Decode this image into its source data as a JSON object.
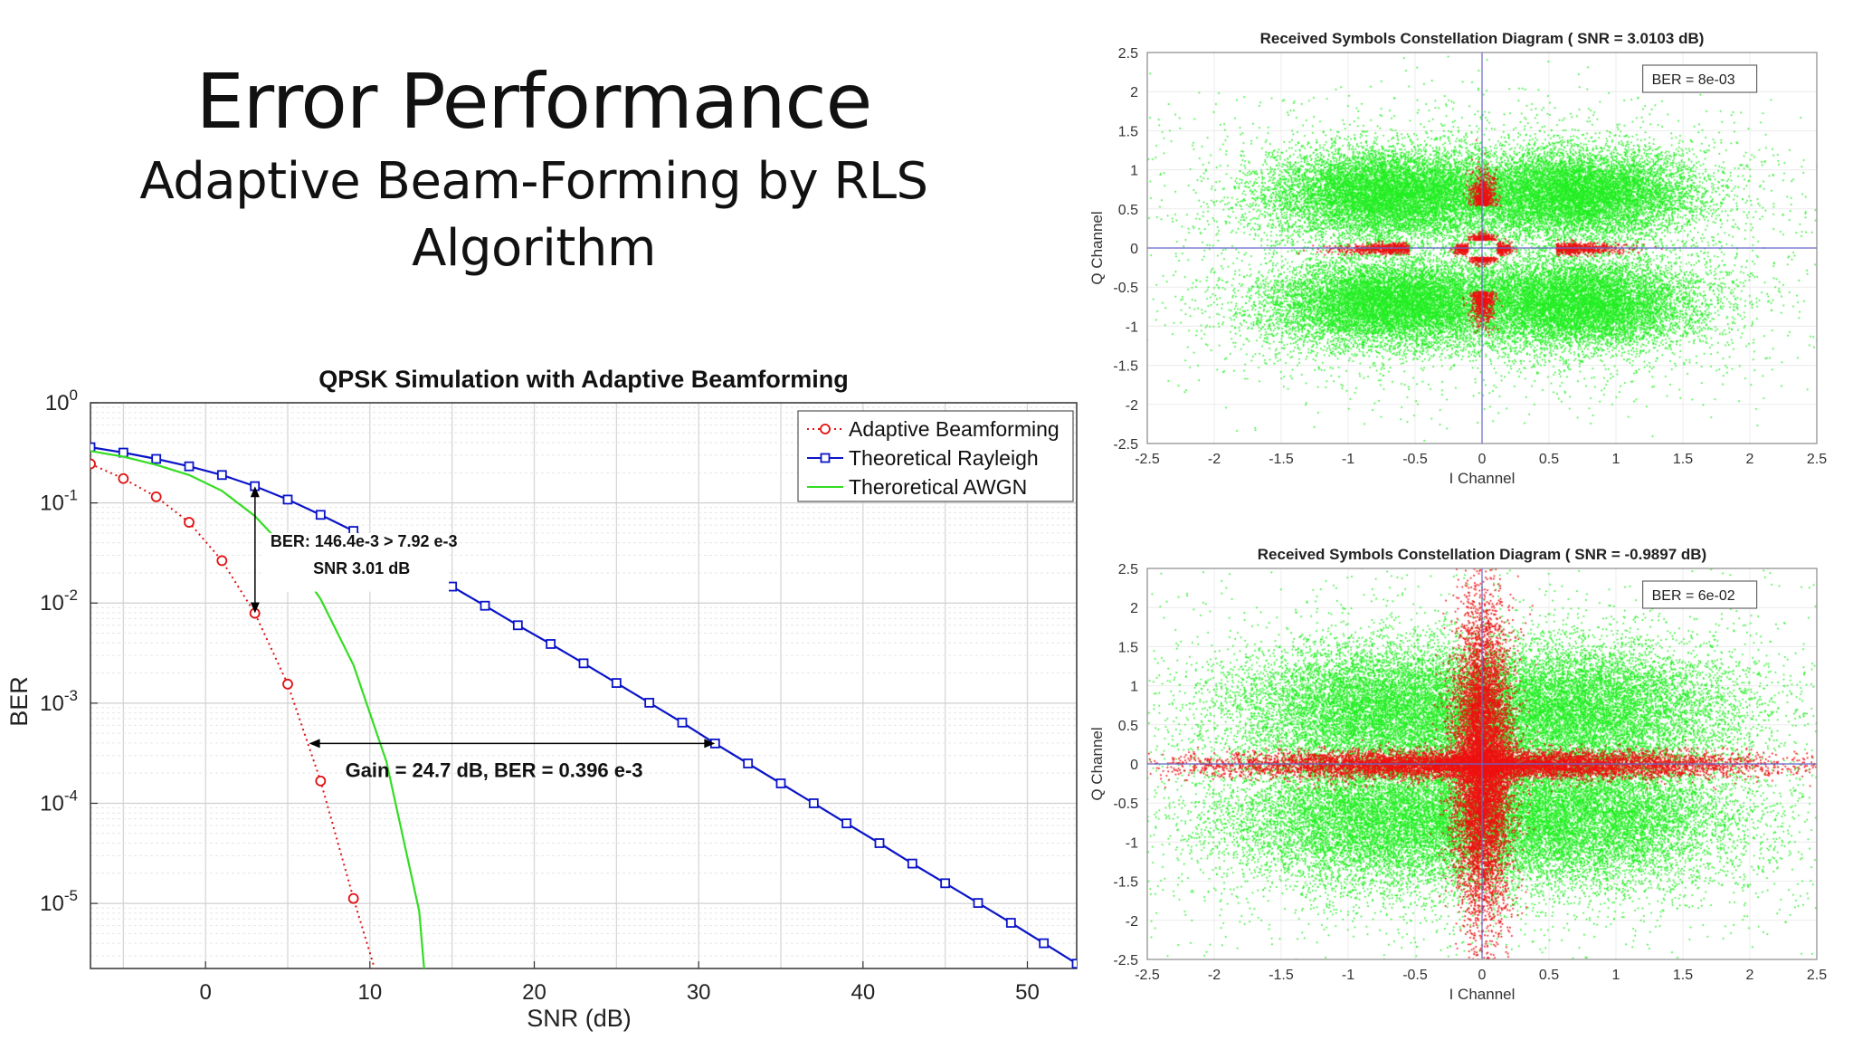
{
  "slide": {
    "title": "Error Performance",
    "subtitle_line1": "Adaptive Beam-Forming by RLS",
    "subtitle_line2": "Algorithm"
  },
  "colors": {
    "adaptive": "#e01010",
    "rayleigh": "#0a14c8",
    "awgn": "#33dd22",
    "grid": "#d7d7d7",
    "constellation_green": "#22ee22",
    "constellation_red": "#ee1111",
    "axis_line": "#6666cc"
  },
  "chart_data": [
    {
      "type": "line",
      "title": "QPSK Simulation with Adaptive Beamforming",
      "xlabel": "SNR (dB)",
      "ylabel": "BER",
      "xlim": [
        -7,
        53
      ],
      "ylim_log10": [
        -5.65,
        0
      ],
      "y_scale": "log",
      "grid": true,
      "legend_position": "top-right",
      "xticks": [
        "0",
        "10",
        "20",
        "30",
        "40",
        "50"
      ],
      "xtick_values": [
        0,
        10,
        20,
        30,
        40,
        50
      ],
      "ytick_exponents": [
        "0",
        "-1",
        "-2",
        "-3",
        "-4",
        "-5"
      ],
      "ytick_base": "10",
      "series": [
        {
          "name": "Adaptive Beamforming",
          "color": "#e01010",
          "marker": "circle",
          "style": "dotted",
          "x": [
            -7,
            -5,
            -3,
            -1,
            1,
            3,
            5,
            7,
            9,
            10.3
          ],
          "y": [
            0.245,
            0.175,
            0.115,
            0.064,
            0.0265,
            0.0079,
            0.00155,
            0.000167,
            1.12e-05,
            2.2e-06
          ],
          "marker_count": 9
        },
        {
          "name": "Theoretical Rayleigh",
          "color": "#0a14c8",
          "marker": "square",
          "style": "solid",
          "x": [
            -7,
            -5,
            -3,
            -1,
            1,
            3,
            5,
            7,
            9,
            11,
            13,
            15,
            17,
            19,
            21,
            23,
            25,
            27,
            29,
            31,
            33,
            35,
            37,
            39,
            41,
            43,
            45,
            47,
            49,
            51,
            53
          ],
          "y": [
            0.36,
            0.318,
            0.275,
            0.232,
            0.19,
            0.147,
            0.108,
            0.076,
            0.0525,
            0.0345,
            0.0225,
            0.0146,
            0.0094,
            0.006,
            0.0039,
            0.0025,
            0.00159,
            0.00101,
            0.00064,
            0.000396,
            0.00025,
            0.000158,
            0.0001,
            6.3e-05,
            4e-05,
            2.5e-05,
            1.59e-05,
            1.01e-05,
            6.4e-06,
            4e-06,
            2.5e-06
          ]
        },
        {
          "name": "Theroretical AWGN",
          "color": "#33dd22",
          "marker": "none",
          "style": "solid",
          "x": [
            -7,
            -5,
            -3,
            -1,
            1,
            3,
            5,
            7,
            9,
            11,
            13,
            13.3
          ],
          "y": [
            0.33,
            0.29,
            0.24,
            0.19,
            0.132,
            0.074,
            0.033,
            0.011,
            0.0024,
            0.000262,
            8.4e-06,
            2.2e-06
          ]
        }
      ],
      "annotations": {
        "ber_line1": "BER: 146.4e-3 > 7.92 e-3",
        "ber_line2": "SNR 3.01 dB",
        "gain": "Gain = 24.7 dB, BER = 0.396 e-3",
        "ber_arrow": {
          "x": 3.01,
          "y_from": 0.1464,
          "y_to": 0.00792
        },
        "gain_arrow": {
          "x_from": 6.3,
          "x_to": 31,
          "y": 0.000396
        }
      }
    },
    {
      "type": "scatter",
      "title": "Received Symbols Constellation Diagram ( SNR = 3.0103 dB)",
      "xlabel": "I Channel",
      "ylabel": "Q Channel",
      "xlim": [
        -2.5,
        2.5
      ],
      "ylim": [
        -2.5,
        2.5
      ],
      "ticks": [
        "-2.5",
        "-2",
        "-1.5",
        "-1",
        "-0.5",
        "0",
        "0.5",
        "1",
        "1.5",
        "2",
        "2.5"
      ],
      "tick_values": [
        -2.5,
        -2,
        -1.5,
        -1,
        -0.5,
        0,
        0.5,
        1,
        1.5,
        2,
        2.5
      ],
      "ber_box": "BER = 8e-03",
      "symbol_clusters": [
        [
          0.7,
          0.7
        ],
        [
          -0.7,
          0.7
        ],
        [
          -0.7,
          -0.7
        ],
        [
          0.7,
          -0.7
        ]
      ],
      "cluster_spread": [
        0.45,
        0.28
      ],
      "error_density": "low"
    },
    {
      "type": "scatter",
      "title": "Received Symbols Constellation Diagram ( SNR = -0.9897 dB)",
      "xlabel": "I Channel",
      "ylabel": "Q Channel",
      "xlim": [
        -2.5,
        2.5
      ],
      "ylim": [
        -2.5,
        2.5
      ],
      "ticks": [
        "-2.5",
        "-2",
        "-1.5",
        "-1",
        "-0.5",
        "0",
        "0.5",
        "1",
        "1.5",
        "2",
        "2.5"
      ],
      "tick_values": [
        -2.5,
        -2,
        -1.5,
        -1,
        -0.5,
        0,
        0.5,
        1,
        1.5,
        2,
        2.5
      ],
      "ber_box": "BER = 6e-02",
      "symbol_clusters": [
        [
          0.7,
          0.7
        ],
        [
          -0.7,
          0.7
        ],
        [
          -0.7,
          -0.7
        ],
        [
          0.7,
          -0.7
        ]
      ],
      "cluster_spread": [
        0.6,
        0.42
      ],
      "error_density": "high"
    }
  ]
}
